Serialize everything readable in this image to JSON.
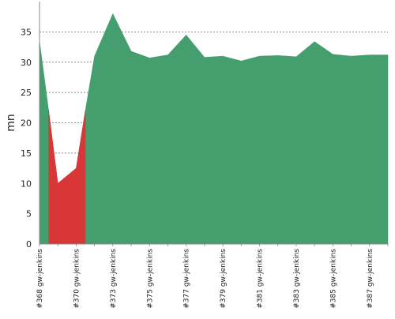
{
  "chart_data": {
    "type": "area",
    "ylabel": "mn",
    "ylim": [
      0,
      40
    ],
    "yticks": [
      0,
      5,
      10,
      15,
      20,
      25,
      30,
      35
    ],
    "grid": true,
    "x_tick_labels": [
      "#368 gw-jenkins",
      "#370 gw-jenkins",
      "#373 gw-jenkins",
      "#375 gw-jenkins",
      "#377 gw-jenkins",
      "#379 gw-jenkins",
      "#381 gw-jenkins",
      "#383 gw-jenkins",
      "#385 gw-jenkins",
      "#387 gw-jenkins"
    ],
    "x_tick_positions": [
      0,
      2,
      4,
      6,
      8,
      10,
      12,
      14,
      16,
      18
    ],
    "x_range": [
      0,
      19
    ],
    "points": [
      {
        "x": 0,
        "y": 33.5,
        "status": "success"
      },
      {
        "x": 0.5,
        "y": 22,
        "status": "failure"
      },
      {
        "x": 1,
        "y": 10,
        "status": "failure"
      },
      {
        "x": 2,
        "y": 12.5,
        "status": "failure"
      },
      {
        "x": 2.5,
        "y": 22,
        "status": "success"
      },
      {
        "x": 3,
        "y": 31,
        "status": "success"
      },
      {
        "x": 4,
        "y": 38,
        "status": "success"
      },
      {
        "x": 5,
        "y": 31.8,
        "status": "success"
      },
      {
        "x": 6,
        "y": 30.7,
        "status": "success"
      },
      {
        "x": 7,
        "y": 31.2,
        "status": "success"
      },
      {
        "x": 8,
        "y": 34.5,
        "status": "success"
      },
      {
        "x": 9,
        "y": 30.8,
        "status": "success"
      },
      {
        "x": 10,
        "y": 31,
        "status": "success"
      },
      {
        "x": 11,
        "y": 30.2,
        "status": "success"
      },
      {
        "x": 12,
        "y": 31,
        "status": "success"
      },
      {
        "x": 13,
        "y": 31.1,
        "status": "success"
      },
      {
        "x": 14,
        "y": 30.9,
        "status": "success"
      },
      {
        "x": 15,
        "y": 33.4,
        "status": "success"
      },
      {
        "x": 16,
        "y": 31.3,
        "status": "success"
      },
      {
        "x": 17,
        "y": 31,
        "status": "success"
      },
      {
        "x": 18,
        "y": 31.2,
        "status": "success"
      },
      {
        "x": 19,
        "y": 31.2,
        "status": "success"
      }
    ],
    "failure_segment": [
      0.5,
      2.5
    ],
    "colors": {
      "success": "#459e6d",
      "failure": "#d93737",
      "grid": "#666666",
      "axis": "#888888",
      "text": "#222222"
    }
  }
}
